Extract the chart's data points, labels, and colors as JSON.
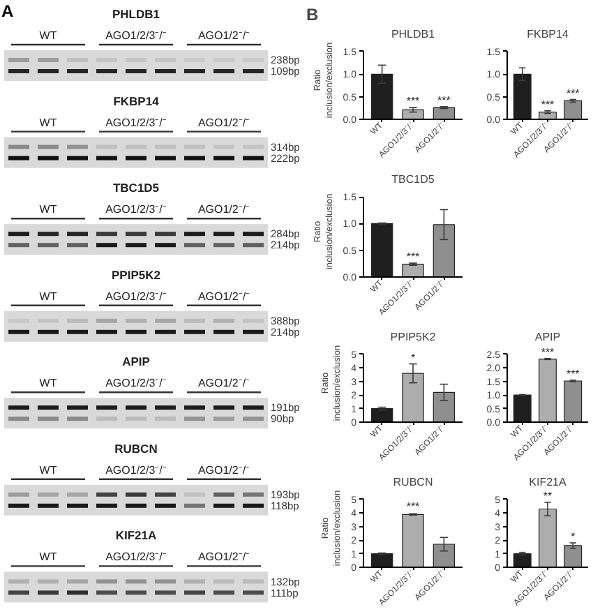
{
  "chart_data": [
    {
      "type": "other",
      "annotations": [
        "A",
        "PHLDB1",
        "WT",
        "AGO1/2/3⁻/⁻",
        "AGO1/2⁻/⁻",
        "238bp",
        "109bp",
        "FKBP14",
        "WT",
        "AGO1/2/3⁻/⁻",
        "AGO1/2⁻/⁻",
        "314bp",
        "222bp",
        "TBC1D5",
        "WT",
        "AGO1/2/3⁻/⁻",
        "AGO1/2⁻/⁻",
        "284bp",
        "214bp",
        "PPIP5K2",
        "WT",
        "AGO1/2/3⁻/⁻",
        "AGO1/2⁻/⁻",
        "388bp",
        "214bp",
        "APIP",
        "WT",
        "AGO1/2/3⁻/⁻",
        "AGO1/2⁻/⁻",
        "191bp",
        "90bp",
        "RUBCN",
        "WT",
        "AGO1/2/3⁻/⁻",
        "AGO1/2⁻/⁻",
        "193bp",
        "118bp",
        "KIF21A",
        "WT",
        "AGO1/2/3⁻/⁻",
        "AGO1/2⁻/⁻",
        "132bp",
        "111bp"
      ]
    },
    {
      "type": "bar",
      "title": "PHLDB1",
      "ylabel": "Ratio inclusion/exclusion",
      "categories": [
        "WT",
        "AGO1/2/3⁻/⁻",
        "AGO1/2⁻/⁻"
      ],
      "values": [
        1.0,
        0.21,
        0.26
      ],
      "errors": [
        0.2,
        0.05,
        0.02
      ],
      "colors": [
        "#1f1f1f",
        "#adadad",
        "#8f8f8f"
      ],
      "ylim": [
        0,
        1.5
      ],
      "yticks": [
        {
          "value": 0,
          "label": "0.0"
        },
        0.5,
        {
          "value": 1,
          "label": "1.0"
        },
        1.5
      ],
      "annotations": [
        "B",
        {
          "text": "***",
          "x": "AGO1/2/3⁻/⁻",
          "y": 0.26
        },
        {
          "text": "***",
          "x": "AGO1/2⁻/⁻",
          "y": 0.28
        }
      ]
    },
    {
      "type": "bar",
      "title": "FKBP14",
      "categories": [
        "WT",
        "AGO1/2/3⁻/⁻",
        "AGO1/2⁻/⁻"
      ],
      "values": [
        1.0,
        0.16,
        0.41
      ],
      "errors": [
        0.14,
        0.03,
        0.03
      ],
      "colors": [
        "#1f1f1f",
        "#adadad",
        "#8f8f8f"
      ],
      "ylim": [
        0,
        1.5
      ],
      "yticks": [
        {
          "value": 0,
          "label": "0.0"
        },
        0.5,
        {
          "value": 1,
          "label": "1.0"
        },
        1.5
      ],
      "annotations": [
        {
          "text": "***",
          "x": "AGO1/2/3⁻/⁻",
          "y": 0.19
        },
        {
          "text": "***",
          "x": "AGO1/2⁻/⁻",
          "y": 0.44
        }
      ]
    },
    {
      "type": "bar",
      "title": "TBC1D5",
      "ylabel": "Ratio inclusion/exclusion",
      "categories": [
        "WT",
        "AGO1/2/3⁻/⁻",
        "AGO1/2⁻/⁻"
      ],
      "values": [
        1.0,
        0.24,
        0.98
      ],
      "errors": [
        0.01,
        0.02,
        0.28
      ],
      "colors": [
        "#1f1f1f",
        "#adadad",
        "#8f8f8f"
      ],
      "ylim": [
        0,
        1.5
      ],
      "yticks": [
        {
          "value": 0,
          "label": "0.0"
        },
        0.5,
        {
          "value": 1,
          "label": "1.0"
        },
        1.5
      ],
      "annotations": [
        {
          "text": "***",
          "x": "AGO1/2/3⁻/⁻",
          "y": 0.26
        }
      ]
    },
    {
      "type": "bar",
      "title": "PPIP5K2",
      "ylabel": "Ratio inclusion/exclusion",
      "categories": [
        "WT",
        "AGO1/2/3⁻/⁻",
        "AGO1/2⁻/⁻"
      ],
      "values": [
        1.0,
        3.6,
        2.2
      ],
      "errors": [
        0.1,
        0.7,
        0.6
      ],
      "colors": [
        "#1f1f1f",
        "#adadad",
        "#8f8f8f"
      ],
      "ylim": [
        0,
        5
      ],
      "yticks": [
        0,
        1,
        2,
        3,
        4,
        5
      ],
      "annotations": [
        {
          "text": "*",
          "x": "AGO1/2/3⁻/⁻",
          "y": 4.3
        }
      ]
    },
    {
      "type": "bar",
      "title": "APIP",
      "categories": [
        "WT",
        "AGO1/2/3⁻/⁻",
        "AGO1/2⁻/⁻"
      ],
      "values": [
        1.0,
        2.33,
        1.52
      ],
      "errors": [
        0.02,
        0.02,
        0.03
      ],
      "colors": [
        "#1f1f1f",
        "#adadad",
        "#8f8f8f"
      ],
      "ylim": [
        0,
        2.5
      ],
      "yticks": [
        {
          "value": 0,
          "label": "0.0"
        },
        0.5,
        {
          "value": 1,
          "label": "1.0"
        },
        1.5,
        {
          "value": 2,
          "label": "2.0"
        },
        2.5
      ],
      "annotations": [
        {
          "text": "***",
          "x": "AGO1/2/3⁻/⁻",
          "y": 2.35
        },
        {
          "text": "***",
          "x": "AGO1/2⁻/⁻",
          "y": 1.55
        }
      ]
    },
    {
      "type": "bar",
      "title": "RUBCN",
      "ylabel": "Ratio inclusion/exclusion",
      "categories": [
        "WT",
        "AGO1/2/3⁻/⁻",
        "AGO1/2⁻/⁻"
      ],
      "values": [
        1.0,
        3.9,
        1.7
      ],
      "errors": [
        0.05,
        0.05,
        0.5
      ],
      "colors": [
        "#1f1f1f",
        "#adadad",
        "#8f8f8f"
      ],
      "ylim": [
        0,
        5
      ],
      "yticks": [
        0,
        1,
        2,
        3,
        4,
        5
      ],
      "annotations": [
        {
          "text": "***",
          "x": "AGO1/2/3⁻/⁻",
          "y": 4.0
        }
      ]
    },
    {
      "type": "bar",
      "title": "KIF21A",
      "categories": [
        "WT",
        "AGO1/2/3⁻/⁻",
        "AGO1/2⁻/⁻"
      ],
      "values": [
        1.0,
        4.3,
        1.6
      ],
      "errors": [
        0.1,
        0.5,
        0.2
      ],
      "colors": [
        "#1f1f1f",
        "#adadad",
        "#8f8f8f"
      ],
      "ylim": [
        0,
        5
      ],
      "yticks": [
        0,
        1,
        2,
        3,
        4,
        5
      ],
      "annotations": [
        {
          "text": "**",
          "x": "AGO1/2/3⁻/⁻",
          "y": 4.8
        },
        {
          "text": "*",
          "x": "AGO1/2⁻/⁻",
          "y": 1.8
        }
      ]
    }
  ]
}
